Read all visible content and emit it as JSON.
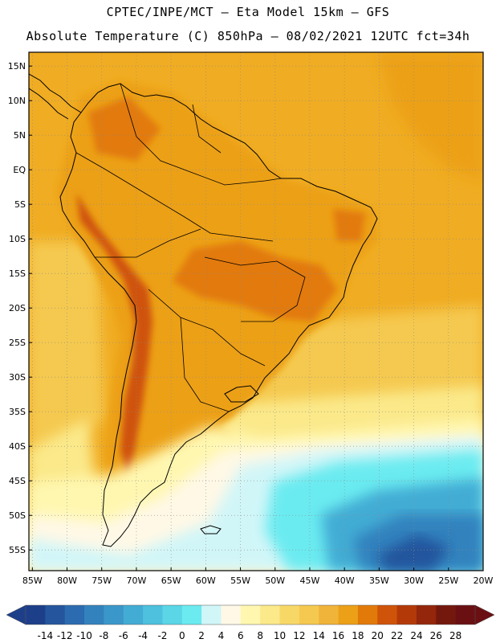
{
  "header": {
    "line1": "CPTEC/INPE/MCT –  Eta Model 15km – GFS",
    "line2": "Absolute Temperature (C) 850hPa – 08/02/2021 12UTC fct=34h"
  },
  "axes": {
    "lat_labels": [
      "15N",
      "10N",
      "5N",
      "EQ",
      "5S",
      "10S",
      "15S",
      "20S",
      "25S",
      "30S",
      "35S",
      "40S",
      "45S",
      "50S",
      "55S"
    ],
    "lat_values": [
      15,
      10,
      5,
      0,
      -5,
      -10,
      -15,
      -20,
      -25,
      -30,
      -35,
      -40,
      -45,
      -50,
      -55
    ],
    "lon_labels": [
      "85W",
      "80W",
      "75W",
      "70W",
      "65W",
      "60W",
      "55W",
      "50W",
      "45W",
      "40W",
      "35W",
      "30W",
      "25W",
      "20W"
    ],
    "lon_values": [
      -85,
      -80,
      -75,
      -70,
      -65,
      -60,
      -55,
      -50,
      -45,
      -40,
      -35,
      -30,
      -25,
      -20
    ],
    "lat_range": [
      -58,
      17
    ],
    "lon_range": [
      -85.5,
      -20
    ]
  },
  "colorbar": {
    "labels": [
      "-14",
      "-12",
      "-10",
      "-8",
      "-6",
      "-4",
      "-2",
      "0",
      "2",
      "4",
      "6",
      "8",
      "10",
      "12",
      "14",
      "16",
      "18",
      "20",
      "22",
      "24",
      "26",
      "28"
    ],
    "colors": [
      "#1d3f8a",
      "#24559d",
      "#2c6bb0",
      "#3382be",
      "#3b97c9",
      "#43acd4",
      "#4dc1dd",
      "#5ad6e6",
      "#6bebf0",
      "#d1f6f8",
      "#fff8e6",
      "#fff7b0",
      "#fbe98a",
      "#f7d867",
      "#f5c94f",
      "#f1b43a",
      "#eca018",
      "#e27a0a",
      "#cf5309",
      "#b33a08",
      "#93260b",
      "#74180e",
      "#6a1013"
    ],
    "units": "C"
  },
  "map_features": {
    "colors": {
      "ocean_warm": "#f0ac22",
      "ocean_mid": "#f5c94f",
      "ocean_cool": "#fbe98a",
      "land_warm": "#eca018",
      "land_hot": "#e27a0a",
      "andes_hot": "#cf5309",
      "cold_1": "#fff7b0",
      "cold_2": "#fff8e6",
      "cold_3": "#d1f6f8",
      "cold_4": "#6bebf0",
      "cold_5": "#43acd4",
      "cold_6": "#3382be",
      "cold_7": "#24559d",
      "coast": "#000000",
      "grid": "#8c8c8c"
    }
  }
}
